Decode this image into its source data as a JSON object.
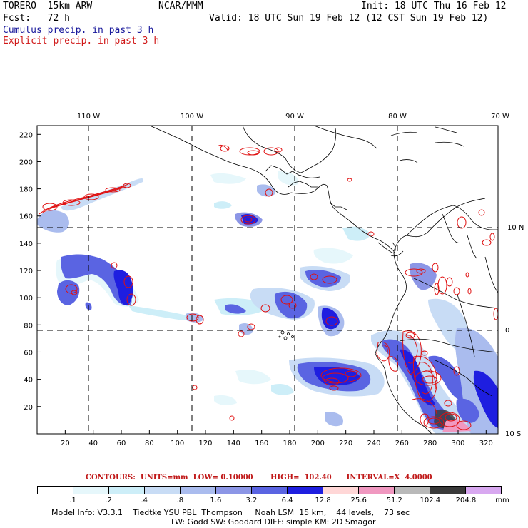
{
  "header": {
    "model": "TORERO  15km ARW",
    "org": "NCAR/MMM",
    "init": "Init: 18 UTC Thu 16 Feb 12",
    "fcst": "Fcst:   72 h",
    "valid": "Valid: 18 UTC Sun 19 Feb 12 (12 CST Sun 19 Feb 12)",
    "legend_cumulus": "Cumulus precip. in past 3 h",
    "legend_explicit": "Explicit precip. in past 3 h"
  },
  "map": {
    "lon_labels": [
      "110 W",
      "100 W",
      "90 W",
      "80 W",
      "70 W"
    ],
    "lat_labels": [
      "10 N",
      "0",
      "10 S"
    ],
    "x_ticks": [
      "20",
      "40",
      "60",
      "80",
      "100",
      "120",
      "140",
      "160",
      "180",
      "200",
      "220",
      "240",
      "260",
      "280",
      "300",
      "320"
    ],
    "y_ticks": [
      "220",
      "200",
      "180",
      "160",
      "140",
      "120",
      "100",
      "80",
      "60",
      "40",
      "20"
    ]
  },
  "contours": {
    "text": "CONTOURS:  UNITS=mm  LOW= 0.10000       HIGH=  102.40      INTERVAL=X  4.0000"
  },
  "colorbar": {
    "labels": [
      ".1",
      ".2",
      ".4",
      ".8",
      "1.6",
      "3.2",
      "6.4",
      "12.8",
      "25.6",
      "51.2",
      "102.4",
      "204.8"
    ],
    "unit": "mm",
    "colors": [
      "#ffffff",
      "#e6f7fb",
      "#cdeef8",
      "#c8dcf5",
      "#aabcee",
      "#8c96e6",
      "#5a64e2",
      "#1e1ee0",
      "#ffd7d7",
      "#f098c0",
      "#b9b9b9",
      "#3a3a3a",
      "#d8a8f0"
    ]
  },
  "model_info": {
    "line1": "Model Info: V3.3.1    Tiedtke YSU PBL  Thompson     Noah LSM  15 km,    44 levels,    73 sec",
    "line2": "LW: Godd SW: Goddard DIFF: simple KM: 2D Smagor"
  }
}
